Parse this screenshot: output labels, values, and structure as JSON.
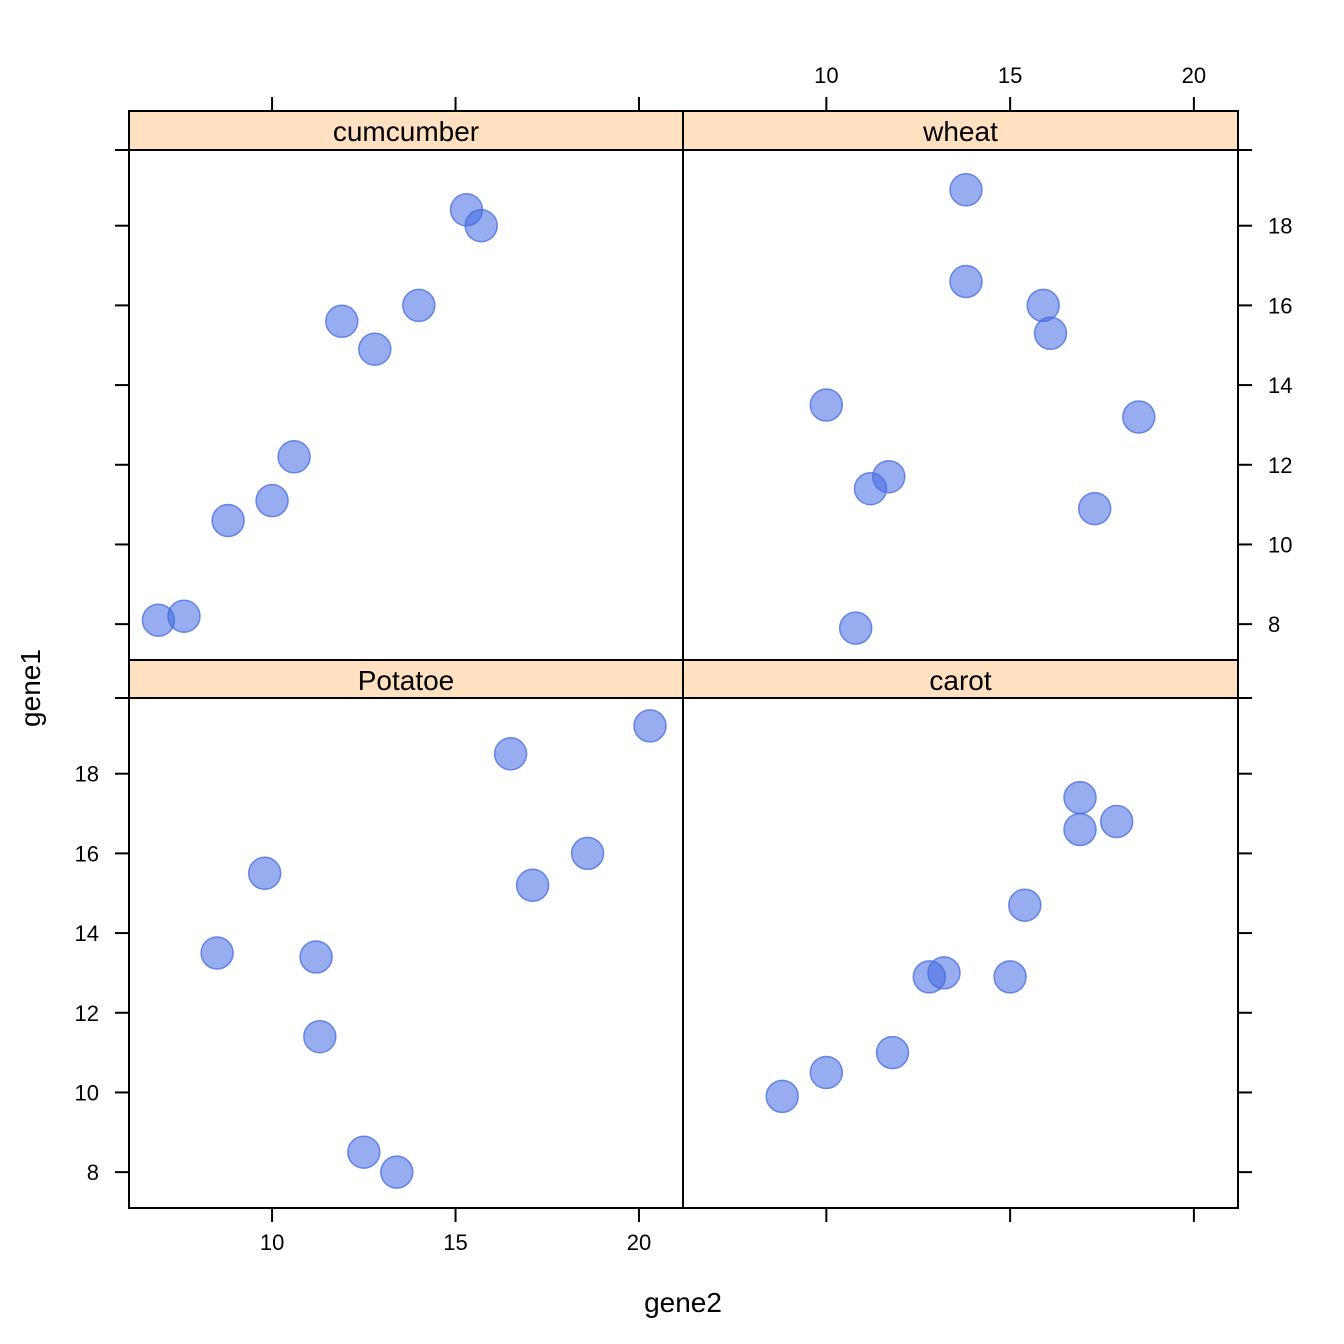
{
  "chart_data": {
    "type": "scatter",
    "layout": "lattice 2x2",
    "xlabel": "gene2",
    "ylabel": "gene1",
    "xlim": [
      6.1,
      21.2
    ],
    "ylim": [
      7.1,
      19.9
    ],
    "xticks": [
      10,
      15,
      20
    ],
    "yticks": [
      8,
      10,
      12,
      14,
      16,
      18
    ],
    "strip_color": "#ffe0c0",
    "point_color": "#4169e1",
    "point_opacity": 0.55,
    "panels": [
      {
        "name": "cumcumber",
        "x": [
          6.9,
          7.6,
          8.8,
          10.0,
          10.6,
          11.9,
          12.8,
          14.0,
          15.3,
          15.7
        ],
        "y": [
          8.1,
          8.2,
          10.6,
          11.1,
          12.2,
          15.6,
          14.9,
          16.0,
          18.4,
          18.0
        ]
      },
      {
        "name": "wheat",
        "x": [
          10.0,
          10.8,
          11.2,
          11.7,
          13.8,
          13.8,
          15.9,
          16.1,
          17.3,
          18.5
        ],
        "y": [
          13.5,
          7.9,
          11.4,
          11.7,
          16.6,
          18.9,
          16.0,
          15.3,
          10.9,
          13.2
        ]
      },
      {
        "name": "Potatoe",
        "x": [
          8.5,
          9.8,
          11.2,
          11.3,
          12.5,
          13.4,
          16.5,
          17.1,
          18.6,
          20.3
        ],
        "y": [
          13.5,
          15.5,
          13.4,
          11.4,
          8.5,
          8.0,
          18.5,
          15.2,
          16.0,
          19.2
        ]
      },
      {
        "name": "carot",
        "x": [
          8.8,
          10.0,
          11.8,
          12.8,
          13.2,
          15.0,
          15.4,
          16.9,
          16.9,
          17.9
        ],
        "y": [
          9.9,
          10.5,
          11.0,
          12.9,
          13.0,
          12.9,
          14.7,
          17.4,
          16.6,
          16.8
        ]
      }
    ]
  }
}
